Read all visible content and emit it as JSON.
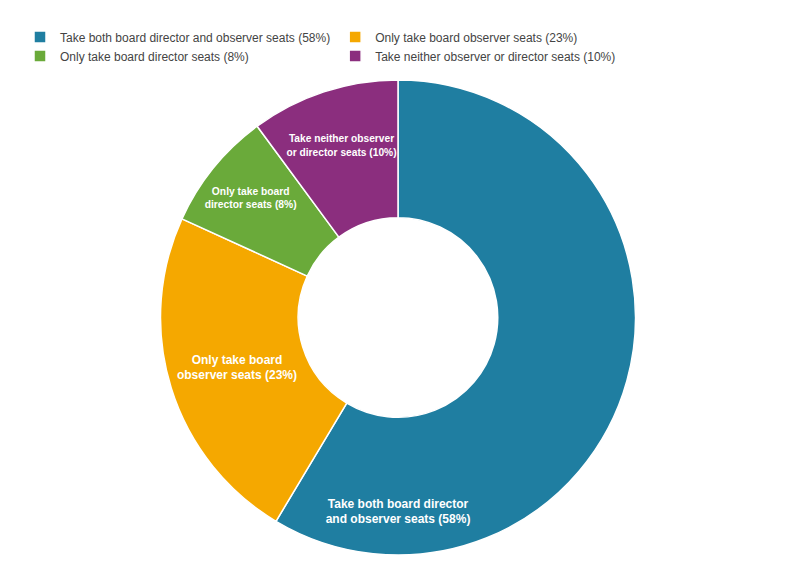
{
  "chart_data": {
    "type": "donut",
    "categories": [
      "Take both board director and observer seats (58%)",
      "Only take board observer seats (23%)",
      "Only take board director seats (8%)",
      "Take neither observer or director seats (10%)"
    ],
    "values": [
      58,
      23,
      8,
      10
    ],
    "value_labels": [
      "Take both board director\nand observer seats (58%)",
      "Only take board\nobserver seats (23%)",
      "Only take board\ndirector seats (8%)",
      "Take neither observer\nor director seats (10%)"
    ],
    "colors": [
      "#1f7ea1",
      "#f5a800",
      "#6aaa3a",
      "#8b2e7e"
    ],
    "data_labels": true,
    "legend": "upper left"
  }
}
